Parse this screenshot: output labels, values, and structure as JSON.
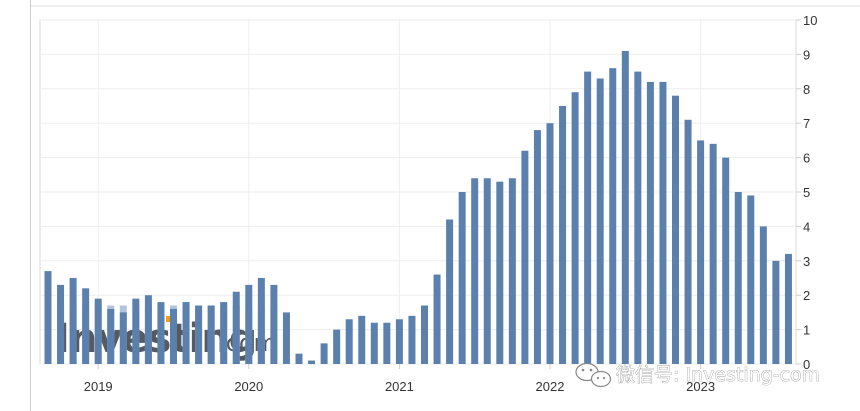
{
  "chart_data": {
    "type": "bar",
    "x_labels": [
      "2019",
      "2020",
      "2021",
      "2022",
      "2023"
    ],
    "x_label_index": [
      4,
      16,
      28,
      40,
      52
    ],
    "y_ticks": [
      "0",
      "1",
      "2",
      "3",
      "4",
      "5",
      "6",
      "7",
      "8",
      "9",
      "10"
    ],
    "ylim": [
      0,
      10
    ],
    "grid": true,
    "bar_color": "#5b80ad",
    "overlay_color": "#b1c4db",
    "overlay_value": 1.7,
    "overlay_range": [
      0,
      19
    ],
    "values": [
      2.7,
      2.3,
      2.5,
      2.2,
      1.9,
      1.6,
      1.5,
      1.9,
      2.0,
      1.8,
      1.6,
      1.8,
      1.7,
      1.7,
      1.8,
      2.1,
      2.3,
      2.5,
      2.3,
      1.5,
      0.3,
      0.1,
      0.6,
      1.0,
      1.3,
      1.4,
      1.2,
      1.2,
      1.3,
      1.4,
      1.7,
      2.6,
      4.2,
      5.0,
      5.4,
      5.4,
      5.3,
      5.4,
      6.2,
      6.8,
      7.0,
      7.5,
      7.9,
      8.5,
      8.3,
      8.6,
      9.1,
      8.5,
      8.2,
      8.2,
      7.8,
      7.1,
      6.5,
      6.4,
      6.0,
      5.0,
      4.9,
      4.0,
      3.0,
      3.2
    ]
  },
  "watermark": {
    "brand": "Investing",
    "suffix": ".com"
  },
  "wechat_overlay": {
    "text": "微信号: Investing-com"
  }
}
